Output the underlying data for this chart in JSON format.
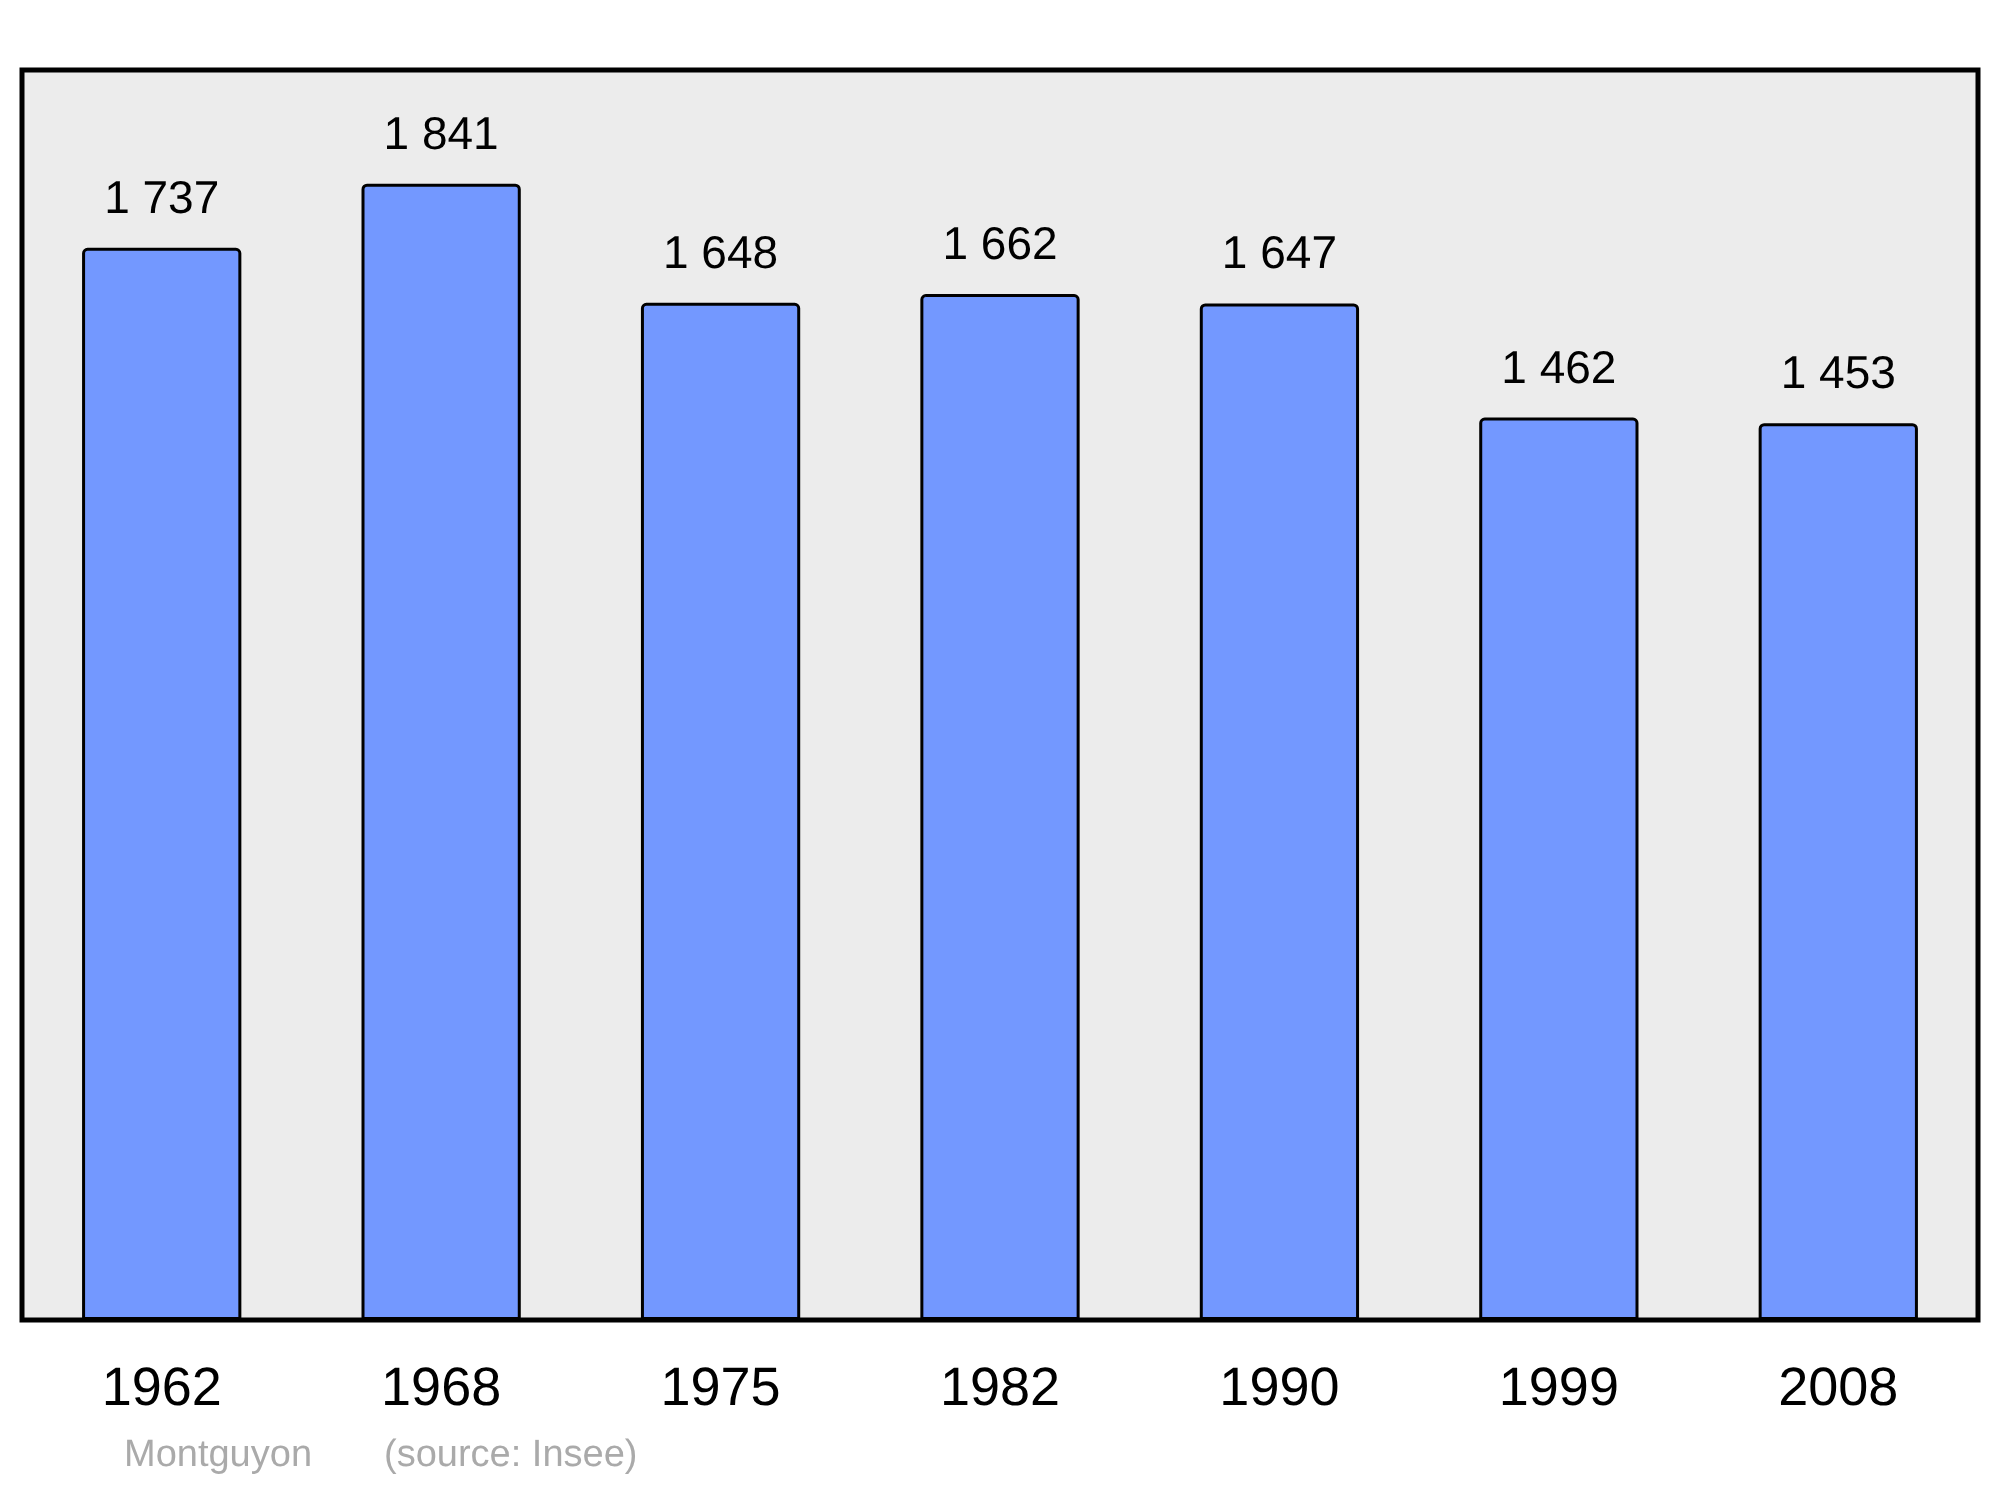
{
  "chart_data": {
    "type": "bar",
    "categories": [
      "1962",
      "1968",
      "1975",
      "1982",
      "1990",
      "1999",
      "2008"
    ],
    "values": [
      1737,
      1841,
      1648,
      1662,
      1647,
      1462,
      1453
    ],
    "value_labels": [
      "1 737",
      "1 841",
      "1 648",
      "1 662",
      "1 647",
      "1 462",
      "1 453"
    ],
    "color": "#7398ff",
    "annotations": [
      "Montguyon",
      "(source: Insee)"
    ]
  }
}
